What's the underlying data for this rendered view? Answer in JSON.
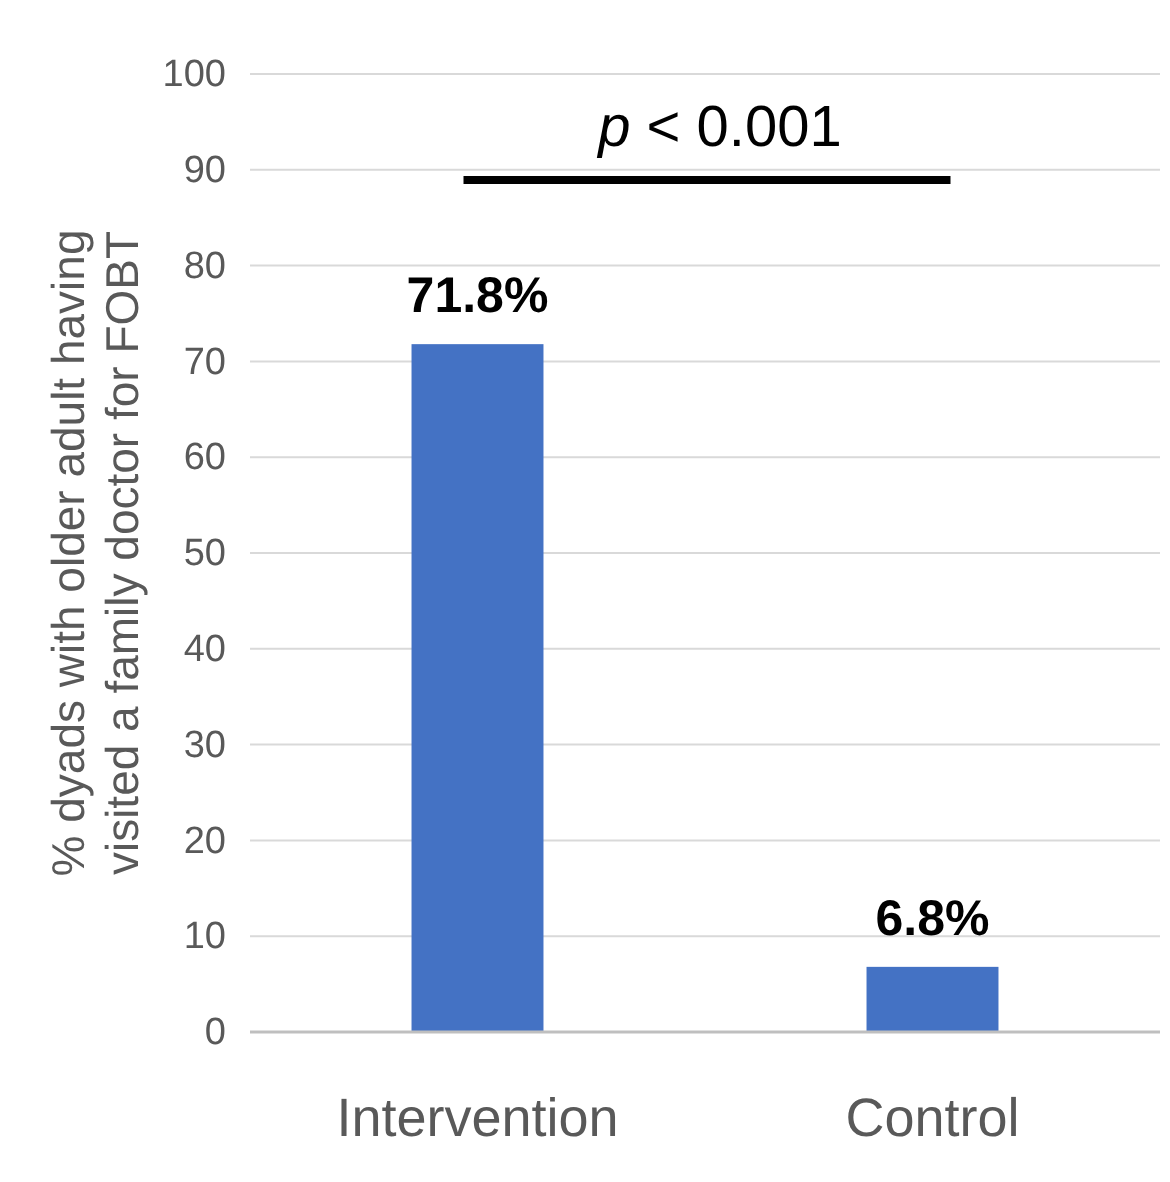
{
  "chart_data": {
    "type": "bar",
    "ylabel": "% dyads with older adult having visited a family doctor for FOBT",
    "categories": [
      "Intervention",
      "Control"
    ],
    "values": [
      71.8,
      6.8
    ],
    "value_labels": [
      "71.8%",
      "6.8%"
    ],
    "color": "#4472c4",
    "ylim": [
      0,
      100
    ],
    "yticks": [
      0,
      10,
      20,
      30,
      40,
      50,
      60,
      70,
      80,
      90,
      100
    ],
    "grid": "y",
    "annotations": [
      "p < 0.001"
    ]
  }
}
